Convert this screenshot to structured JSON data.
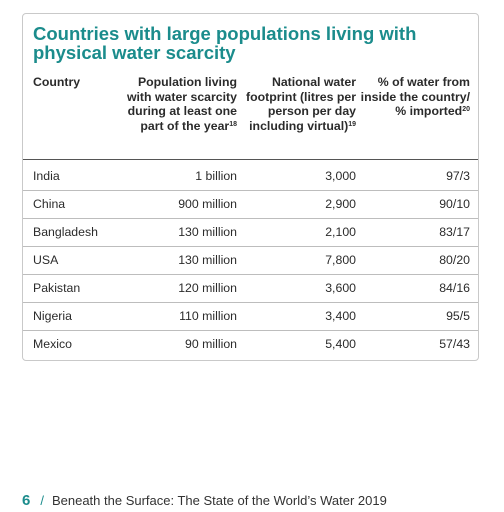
{
  "table": {
    "title": "Countries with large populations living with physical water scarcity",
    "headers": {
      "country": "Country",
      "population": "Population living with water scarcity during at least one part of the year",
      "population_note": "18",
      "footprint": "National water footprint (litres per person per day including virtual)",
      "footprint_note": "19",
      "percent": "% of water from inside the country/ % imported",
      "percent_note": "20"
    },
    "rows": [
      {
        "country": "India",
        "population": "1 billion",
        "footprint": "3,000",
        "percent": "97/3"
      },
      {
        "country": "China",
        "population": "900 million",
        "footprint": "2,900",
        "percent": "90/10"
      },
      {
        "country": "Bangladesh",
        "population": "130 million",
        "footprint": "2,100",
        "percent": "83/17"
      },
      {
        "country": "USA",
        "population": "130 million",
        "footprint": "7,800",
        "percent": "80/20"
      },
      {
        "country": "Pakistan",
        "population": "120 million",
        "footprint": "3,600",
        "percent": "84/16"
      },
      {
        "country": "Nigeria",
        "population": "110 million",
        "footprint": "3,400",
        "percent": "95/5"
      },
      {
        "country": "Mexico",
        "population": "90 million",
        "footprint": "5,400",
        "percent": "57/43"
      }
    ]
  },
  "footer": {
    "page_number": "6",
    "separator": "/",
    "publication": "Beneath the Surface: The State of the World’s Water 2019"
  }
}
